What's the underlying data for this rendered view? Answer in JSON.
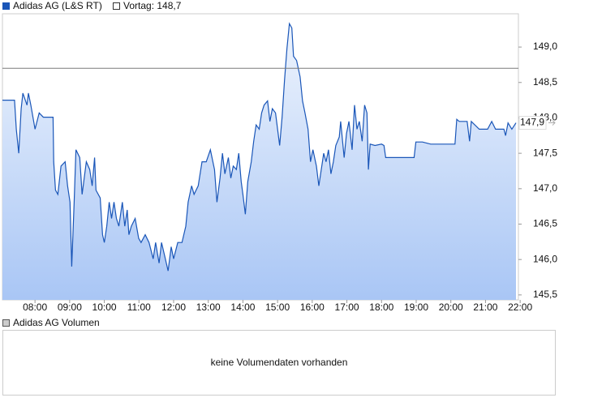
{
  "chart_data": {
    "type": "line",
    "series": [
      {
        "name": "Adidas AG (L&S RT)",
        "color": "#1a56b8",
        "x": [
          7.06,
          7.41,
          7.46,
          7.53,
          7.6,
          7.65,
          7.77,
          7.81,
          7.88,
          8.0,
          8.12,
          8.24,
          8.52,
          8.54,
          8.59,
          8.66,
          8.75,
          8.87,
          8.94,
          9.01,
          9.06,
          9.13,
          9.18,
          9.29,
          9.36,
          9.48,
          9.58,
          9.65,
          9.72,
          9.76,
          9.88,
          9.95,
          10.0,
          10.07,
          10.14,
          10.21,
          10.28,
          10.35,
          10.42,
          10.52,
          10.59,
          10.66,
          10.71,
          10.78,
          10.89,
          10.99,
          11.06,
          11.18,
          11.29,
          11.41,
          11.48,
          11.58,
          11.65,
          11.76,
          11.84,
          11.93,
          12.0,
          12.12,
          12.24,
          12.35,
          12.42,
          12.52,
          12.59,
          12.71,
          12.82,
          12.94,
          13.06,
          13.18,
          13.25,
          13.34,
          13.41,
          13.48,
          13.58,
          13.65,
          13.72,
          13.81,
          13.88,
          13.95,
          14.0,
          14.07,
          14.14,
          14.24,
          14.31,
          14.38,
          14.47,
          14.54,
          14.61,
          14.71,
          14.78,
          14.85,
          14.94,
          15.06,
          15.13,
          15.2,
          15.27,
          15.34,
          15.41,
          15.46,
          15.55,
          15.65,
          15.72,
          15.79,
          15.88,
          15.95,
          16.02,
          16.12,
          16.19,
          16.26,
          16.33,
          16.4,
          16.47,
          16.54,
          16.61,
          16.68,
          16.78,
          16.82,
          16.92,
          16.99,
          17.06,
          17.15,
          17.22,
          17.29,
          17.36,
          17.44,
          17.51,
          17.58,
          17.62,
          17.67,
          17.81,
          18.0,
          18.07,
          18.12,
          18.94,
          18.99,
          19.18,
          19.42,
          20.12,
          20.17,
          20.24,
          20.47,
          20.54,
          20.59,
          20.82,
          21.06,
          21.18,
          21.29,
          21.53,
          21.58,
          21.65,
          21.76,
          21.84,
          21.88
        ],
        "values": [
          148.25,
          148.25,
          147.84,
          147.5,
          148.13,
          148.35,
          148.18,
          148.35,
          148.18,
          147.84,
          148.07,
          148.01,
          148.01,
          147.38,
          146.98,
          146.92,
          147.32,
          147.38,
          147.04,
          146.81,
          145.9,
          146.81,
          147.55,
          147.44,
          146.92,
          147.38,
          147.27,
          147.04,
          147.44,
          146.98,
          146.87,
          146.35,
          146.24,
          146.47,
          146.81,
          146.58,
          146.81,
          146.58,
          146.47,
          146.81,
          146.47,
          146.7,
          146.35,
          146.47,
          146.58,
          146.3,
          146.24,
          146.35,
          146.24,
          146.01,
          146.24,
          145.95,
          146.24,
          146.01,
          145.84,
          146.18,
          146.01,
          146.24,
          146.24,
          146.47,
          146.81,
          147.04,
          146.92,
          147.04,
          147.38,
          147.38,
          147.55,
          147.27,
          146.81,
          147.15,
          147.5,
          147.21,
          147.44,
          147.15,
          147.32,
          147.27,
          147.5,
          147.1,
          146.92,
          146.64,
          147.1,
          147.38,
          147.67,
          147.9,
          147.84,
          148.07,
          148.18,
          148.24,
          147.95,
          148.13,
          148.07,
          147.61,
          148.01,
          148.53,
          148.98,
          149.33,
          149.27,
          148.87,
          148.81,
          148.58,
          148.24,
          148.07,
          147.84,
          147.38,
          147.55,
          147.32,
          147.04,
          147.27,
          147.5,
          147.38,
          147.55,
          147.21,
          147.38,
          147.61,
          147.73,
          147.95,
          147.44,
          147.78,
          147.95,
          147.55,
          148.18,
          147.84,
          147.95,
          147.67,
          148.18,
          148.07,
          147.27,
          147.63,
          147.61,
          147.63,
          147.61,
          147.44,
          147.44,
          147.66,
          147.66,
          147.63,
          147.63,
          147.98,
          147.95,
          147.95,
          147.67,
          147.95,
          147.84,
          147.84,
          147.95,
          147.84,
          147.84,
          147.75,
          147.93,
          147.84,
          147.9,
          147.93
        ]
      }
    ],
    "reference": {
      "label": "Vortag: 148,7",
      "value": 148.7,
      "color": "#7a7a7a"
    },
    "last_price": {
      "value": 147.93,
      "label": "147,9"
    },
    "xlim": [
      7.06,
      21.95
    ],
    "ylim": [
      145.43,
      149.47
    ],
    "xticks": [
      {
        "value": 8,
        "label": "08:00"
      },
      {
        "value": 9,
        "label": "09:00"
      },
      {
        "value": 10,
        "label": "10:00"
      },
      {
        "value": 11,
        "label": "11:00"
      },
      {
        "value": 12,
        "label": "12:00"
      },
      {
        "value": 13,
        "label": "13:00"
      },
      {
        "value": 14,
        "label": "14:00"
      },
      {
        "value": 15,
        "label": "15:00"
      },
      {
        "value": 16,
        "label": "16:00"
      },
      {
        "value": 17,
        "label": "17:00"
      },
      {
        "value": 18,
        "label": "18:00"
      },
      {
        "value": 19,
        "label": "19:00"
      },
      {
        "value": 20,
        "label": "20:00"
      },
      {
        "value": 21,
        "label": "21:00"
      },
      {
        "value": 22,
        "label": "22:00"
      }
    ],
    "yticks": [
      {
        "value": 145.5,
        "label": "145,5"
      },
      {
        "value": 146,
        "label": "146,0"
      },
      {
        "value": 146.5,
        "label": "146,5"
      },
      {
        "value": 147,
        "label": "147,0"
      },
      {
        "value": 147.5,
        "label": "147,5"
      },
      {
        "value": 148,
        "label": "148,0"
      },
      {
        "value": 148.5,
        "label": "148,5"
      },
      {
        "value": 149,
        "label": "149,0"
      }
    ]
  },
  "volume_panel": {
    "legend": "Adidas AG Volumen",
    "message": "keine Volumendaten vorhanden"
  }
}
